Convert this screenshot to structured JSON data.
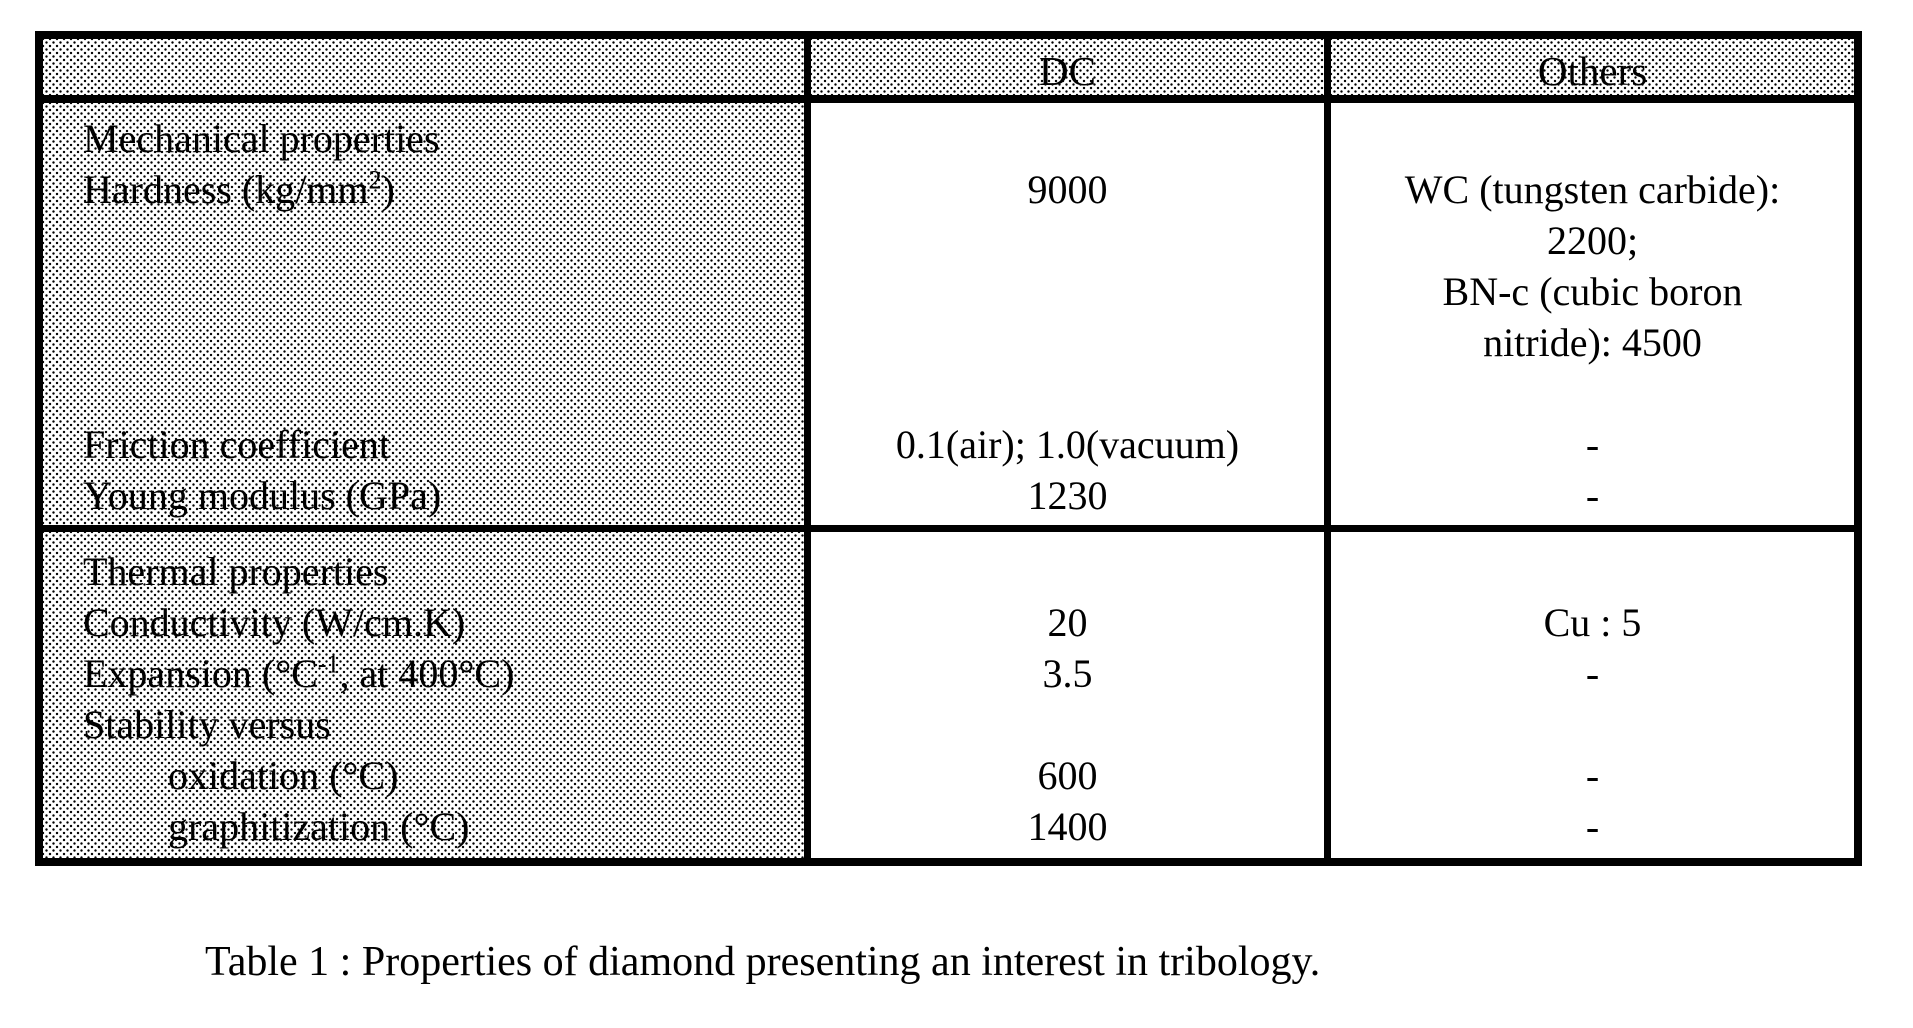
{
  "table": {
    "header": {
      "blank": "",
      "dc": "DC",
      "others": "Others"
    },
    "mechanical": {
      "labels": {
        "section_title": "Mechanical properties",
        "hardness_pre": "Hardness (kg/mm",
        "hardness_sup": "2",
        "hardness_post": ")",
        "friction": "Friction coefficient",
        "young": "Young modulus (GPa)"
      },
      "dc": {
        "hardness": "9000",
        "friction": "0.1(air); 1.0(vacuum)",
        "young": "1230"
      },
      "others": {
        "hardness_line1": "WC (tungsten carbide):",
        "hardness_line2": "2200;",
        "hardness_line3": "BN-c (cubic boron",
        "hardness_line4": "nitride): 4500",
        "friction": "-",
        "young": "-"
      }
    },
    "thermal": {
      "labels": {
        "section_title": "Thermal properties",
        "conductivity": "Conductivity (W/cm.K)",
        "expansion_pre": "Expansion (°C",
        "expansion_sup": "-1",
        "expansion_post": ", at 400°C)",
        "stability": "Stability versus",
        "oxidation": "oxidation (°C)",
        "graphitization": "graphitization (°C)"
      },
      "dc": {
        "conductivity": "20",
        "expansion": "3.5",
        "oxidation": "600",
        "graphitization": "1400"
      },
      "others": {
        "conductivity": "Cu : 5",
        "expansion": "-",
        "oxidation": "-",
        "graphitization": "-"
      }
    }
  },
  "caption": "Table 1 : Properties of diamond presenting an interest in tribology."
}
